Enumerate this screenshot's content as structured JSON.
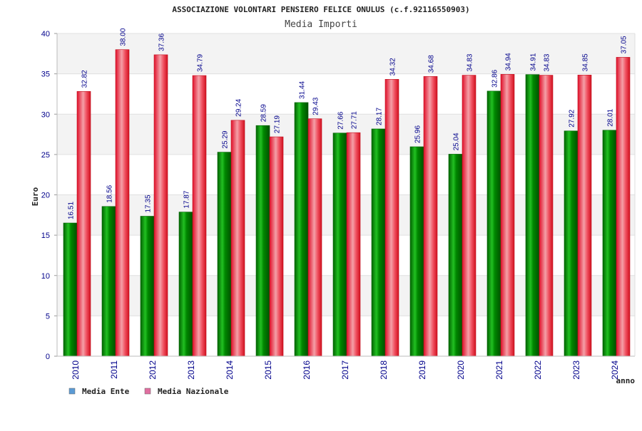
{
  "chart_data": {
    "type": "bar",
    "title": "ASSOCIAZIONE VOLONTARI PENSIERO FELICE ONULUS (c.f.92116550903)",
    "subtitle": "Media Importi",
    "xlabel": "anno",
    "ylabel": "Euro",
    "ylim": [
      0,
      40
    ],
    "yticks": [
      0,
      5,
      10,
      15,
      20,
      25,
      30,
      35,
      40
    ],
    "categories": [
      "2010",
      "2011",
      "2012",
      "2013",
      "2014",
      "2015",
      "2016",
      "2017",
      "2018",
      "2019",
      "2020",
      "2021",
      "2022",
      "2023",
      "2024"
    ],
    "series": [
      {
        "name": "Media Ente",
        "color": "#00a000",
        "values": [
          16.51,
          18.56,
          17.35,
          17.87,
          25.29,
          28.59,
          31.44,
          27.66,
          28.17,
          25.96,
          25.04,
          32.86,
          34.91,
          27.92,
          28.01
        ],
        "labels": [
          "16.51",
          "18.56",
          "17.35",
          "17.87",
          "25.29",
          "28.59",
          "31.44",
          "27.66",
          "28.17",
          "25.96",
          "25.04",
          "32.86",
          "34.91",
          "27.92",
          "28.01"
        ]
      },
      {
        "name": "Media Nazionale",
        "color": "#e8202a",
        "values": [
          32.82,
          38.0,
          37.36,
          34.79,
          29.24,
          27.19,
          29.43,
          27.71,
          34.32,
          34.68,
          34.83,
          34.94,
          34.83,
          34.85,
          37.05
        ],
        "labels": [
          "32.82",
          "38.00",
          "37.36",
          "34.79",
          "29.24",
          "27.19",
          "29.43",
          "27.71",
          "34.32",
          "34.68",
          "34.83",
          "34.94",
          "34.83",
          "34.85",
          "37.05"
        ]
      }
    ],
    "legend": {
      "position": "bottom-left",
      "items": [
        {
          "label": "Media Ente",
          "color": "#5b9bd5"
        },
        {
          "label": "Media Nazionale",
          "color": "#e06fa0"
        }
      ]
    },
    "grid": true
  }
}
